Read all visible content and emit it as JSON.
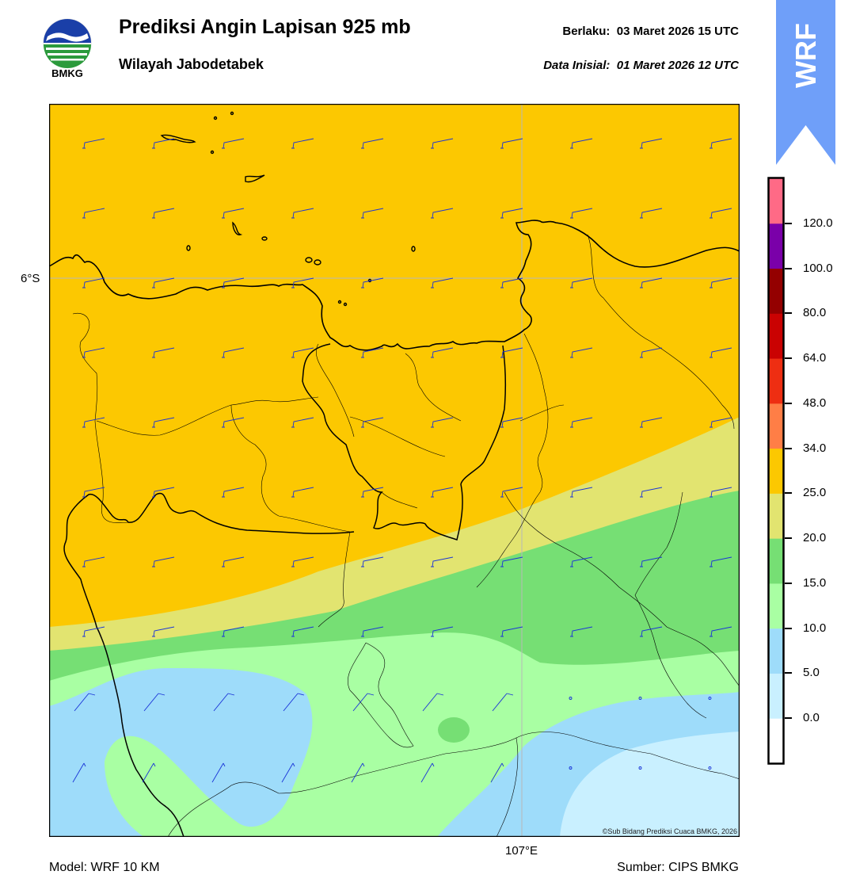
{
  "header": {
    "title": "Prediksi Angin Lapisan 925 mb",
    "subtitle": "Wilayah Jabodetabek",
    "valid_label": "Berlaku:",
    "valid_time": "03 Maret 2026 15 UTC",
    "init_label": "Data Inisial:",
    "init_time": "01 Maret 2026 12 UTC"
  },
  "logo": {
    "name": "bmkg-logo",
    "text": "BMKG"
  },
  "badge": {
    "text": "WRF",
    "color": "#6f9ff9"
  },
  "map": {
    "lat_label": "6°S",
    "lon_label": "107°E",
    "copyright": "©Sub Bidang Prediksi Cuaca BMKG, 2026"
  },
  "colorbar": {
    "colors": [
      "#ffffff",
      "#c9f0ff",
      "#9edcfa",
      "#a9ffa3",
      "#76df74",
      "#e2e470",
      "#fcc801",
      "#ff7e46",
      "#ee2e12",
      "#ca0202",
      "#940000",
      "#7a00a9",
      "#ff6a86"
    ],
    "labels": [
      "0.0",
      "5.0",
      "10.0",
      "15.0",
      "20.0",
      "25.0",
      "34.0",
      "48.0",
      "64.0",
      "80.0",
      "100.0",
      "120.0"
    ]
  },
  "footer": {
    "model": "Model: WRF 10 KM",
    "source": "Sumber: CIPS BMKG"
  }
}
